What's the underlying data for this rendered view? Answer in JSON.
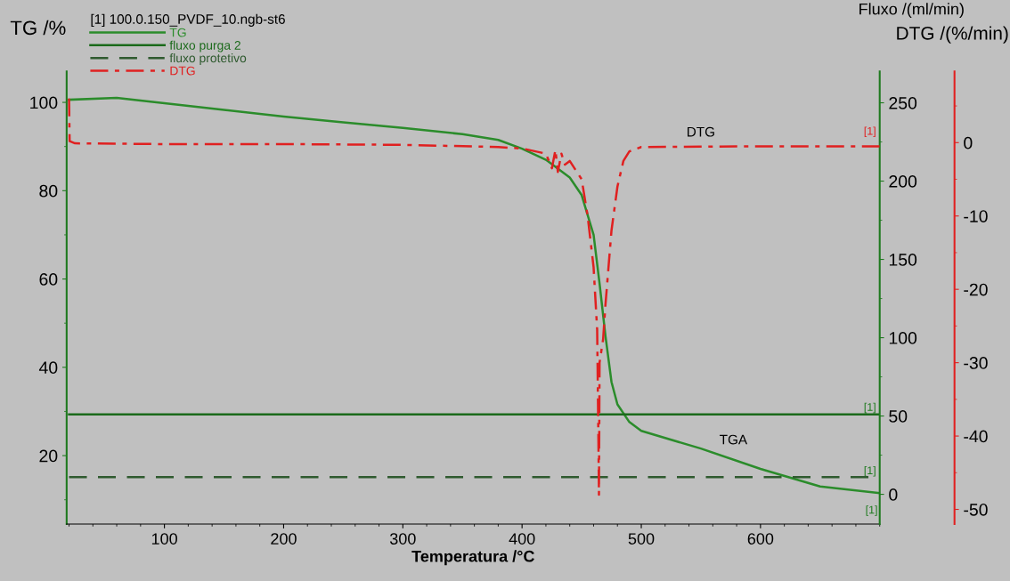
{
  "chart_data": {
    "type": "line",
    "legend_title": "[1] 100.0.150_PVDF_10.ngb-st6",
    "xlabel": "Temperatura /°C",
    "ylabel": "TG /%",
    "y2label": "Fluxo /(ml/min)",
    "y3label": "DTG /(%/min)",
    "xlim": [
      18,
      700
    ],
    "xticks": [
      100,
      200,
      300,
      400,
      500,
      600
    ],
    "ylim": [
      4.5,
      107
    ],
    "yticks": [
      20,
      40,
      60,
      80,
      100
    ],
    "y2lim": [
      -19,
      270
    ],
    "y2ticks": [
      0,
      50,
      100,
      150,
      200,
      250
    ],
    "y3lim": [
      -52,
      9.7
    ],
    "y3ticks": [
      -50,
      -40,
      -30,
      -20,
      -10,
      0
    ],
    "legend": "top left",
    "grid": false,
    "series": [
      {
        "name": "TG",
        "color": "#2b8c2b",
        "axis": "y",
        "line_style": "solid",
        "x": [
          20,
          60,
          100,
          150,
          200,
          250,
          300,
          350,
          380,
          400,
          420,
          440,
          450,
          460,
          465,
          470,
          475,
          480,
          490,
          500,
          550,
          600,
          650,
          700
        ],
        "values": [
          100.6,
          101,
          99.8,
          98.3,
          96.8,
          95.5,
          94.2,
          92.8,
          91.5,
          89.5,
          87,
          83,
          79,
          70,
          59,
          47,
          36.7,
          31.6,
          27.6,
          25.6,
          21.6,
          17,
          13,
          11.5
        ]
      },
      {
        "name": "fluxo purga 2",
        "color": "#1b6a1b",
        "axis": "y2",
        "line_style": "solid",
        "x": [
          20,
          700
        ],
        "values": [
          51,
          51
        ]
      },
      {
        "name": "fluxo protetivo",
        "color": "#2f5a2f",
        "axis": "y2",
        "line_style": "dashed",
        "x": [
          20,
          700
        ],
        "values": [
          11,
          11
        ]
      },
      {
        "name": "DTG",
        "color": "#e02020",
        "axis": "y3",
        "line_style": "dashdot",
        "x": [
          20,
          20.5,
          25,
          100,
          200,
          300,
          380,
          400,
          420,
          425,
          428,
          430,
          433,
          436,
          440,
          450,
          455,
          460,
          463,
          464,
          464.5,
          465,
          468,
          470,
          475,
          480,
          485,
          490,
          500,
          600,
          700
        ],
        "values": [
          6,
          0.2,
          -0.1,
          -0.2,
          -0.2,
          -0.3,
          -0.6,
          -0.8,
          -1.5,
          -3.5,
          -1,
          -4,
          -1.5,
          -3,
          -2.5,
          -5,
          -10,
          -17,
          -25.5,
          -40,
          -48,
          -30,
          -26.8,
          -22,
          -12,
          -6,
          -2.5,
          -1.2,
          -0.6,
          -0.5,
          -0.5
        ]
      }
    ],
    "annotations": [
      "TGA",
      "DTG",
      "[1]",
      "[1]",
      "[1]",
      "[1]"
    ]
  }
}
